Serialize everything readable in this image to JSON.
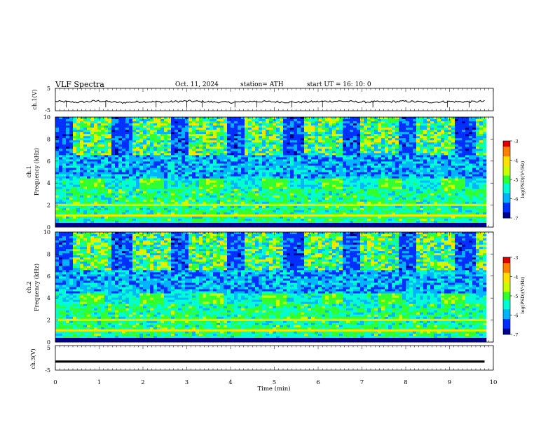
{
  "header": {
    "title": "VLF Spectra",
    "date": "Oct. 11, 2024",
    "station": "station= ATH",
    "start": "start  UT =   16: 10: 0"
  },
  "colors": {
    "spectrogram_colormap": [
      "#00008f",
      "#0030ff",
      "#00b4ff",
      "#00ffd0",
      "#30ff30",
      "#c8ff00",
      "#ffe000",
      "#ff8000",
      "#e00000",
      "#ffffff"
    ],
    "trace": "#000000"
  },
  "chart_data": [
    {
      "type": "line",
      "ylabel": "ch.1(V)",
      "ylim": [
        -5,
        5
      ],
      "yticks": [
        "5",
        "-5"
      ],
      "xlim": [
        0,
        10
      ],
      "description_level": -0.6,
      "x": [
        0,
        0.5,
        1,
        1.5,
        2,
        2.5,
        3,
        3.5,
        4,
        4.5,
        5,
        5.5,
        6,
        6.5,
        7,
        7.5,
        8,
        8.5,
        9,
        9.5,
        9.8
      ],
      "y": [
        -0.8,
        -1.2,
        -0.6,
        -1.4,
        -0.9,
        -1.1,
        -0.7,
        -1.0,
        -1.3,
        -0.8,
        -1.0,
        -1.2,
        -0.9,
        -0.7,
        -1.1,
        -1.0,
        -0.8,
        -1.2,
        -0.9,
        -1.0,
        -0.8
      ]
    },
    {
      "type": "heatmap",
      "ylabel": "ch.1\nFrequency (kHz)",
      "ylabel_channel": "ch.1",
      "ylabel_freq": "Frequency (kHz)",
      "ylim": [
        0,
        10
      ],
      "yticks": [
        "0",
        "2",
        "4",
        "6",
        "8",
        "10"
      ],
      "xlim": [
        0,
        10
      ],
      "colorbar": {
        "label": "log(PSD)(V²/Hz)",
        "ticks": [
          "-3",
          "-4",
          "-5",
          "-6",
          "-7"
        ],
        "range": [
          -7,
          -3
        ]
      },
      "bursts_min": [
        0.6,
        1.95,
        3.3,
        4.7,
        6.05,
        7.4,
        8.8
      ],
      "burst_band_khz": [
        3.7,
        4.3
      ]
    },
    {
      "type": "heatmap",
      "ylabel": "ch.2\nFrequency (kHz)",
      "ylabel_channel": "ch.2",
      "ylabel_freq": "Frequency (kHz)",
      "ylim": [
        0,
        10
      ],
      "yticks": [
        "0",
        "2",
        "4",
        "6",
        "8",
        "10"
      ],
      "xlim": [
        0,
        10
      ],
      "colorbar": {
        "label": "log(PSD)(V²/Hz)",
        "ticks": [
          "-3",
          "-4",
          "-5",
          "-6",
          "-7"
        ],
        "range": [
          -7,
          -3
        ]
      },
      "bursts_min": [
        0.6,
        1.95,
        3.3,
        4.7,
        6.05,
        7.4,
        8.8
      ],
      "burst_band_khz": [
        3.7,
        4.3
      ]
    },
    {
      "type": "line",
      "ylabel": "ch.3(V)",
      "ylim": [
        -5,
        5
      ],
      "yticks": [
        "5",
        "-5"
      ],
      "xlim": [
        0,
        10
      ],
      "xlabel": "Time  (min)",
      "xticks": [
        "0",
        "1",
        "2",
        "3",
        "4",
        "5",
        "6",
        "7",
        "8",
        "9",
        "10"
      ],
      "x": [
        0,
        9.8
      ],
      "y": [
        -1.5,
        -1.5
      ]
    }
  ]
}
